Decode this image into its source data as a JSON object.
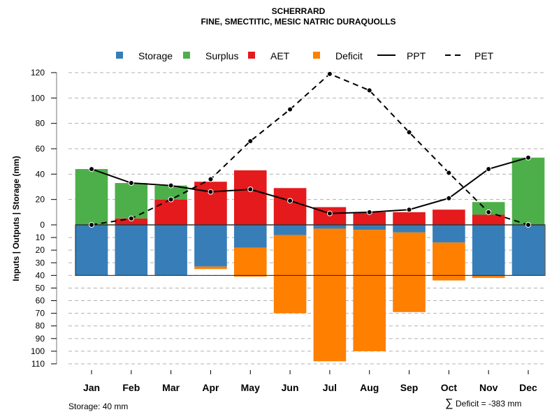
{
  "chart_data": {
    "type": "bar",
    "title": "SCHERRARD",
    "subtitle": "FINE, SMECTITIC, MESIC NATRIC DURAQUOLLS",
    "ylabel": "Inputs | Outputs | Storage    (mm)",
    "xlabel": "",
    "categories": [
      "Jan",
      "Feb",
      "Mar",
      "Apr",
      "May",
      "Jun",
      "Jul",
      "Aug",
      "Sep",
      "Oct",
      "Nov",
      "Dec"
    ],
    "upper_yticks": [
      0,
      20,
      40,
      60,
      80,
      100,
      120
    ],
    "lower_yticks": [
      10,
      20,
      30,
      40,
      50,
      60,
      70,
      80,
      90,
      100,
      110
    ],
    "ylim_upper": [
      0,
      120
    ],
    "ylim_lower": [
      0,
      110
    ],
    "grid": true,
    "legend_position": "top",
    "legend": [
      {
        "name": "Storage",
        "kind": "box",
        "color": "#377EB8"
      },
      {
        "name": "Surplus",
        "kind": "box",
        "color": "#4DAF4A"
      },
      {
        "name": "AET",
        "kind": "box",
        "color": "#E41A1C"
      },
      {
        "name": "Deficit",
        "kind": "box",
        "color": "#FF7F00"
      },
      {
        "name": "PPT",
        "kind": "solid-line",
        "color": "#000000"
      },
      {
        "name": "PET",
        "kind": "dashed-line",
        "color": "#000000"
      }
    ],
    "series": [
      {
        "name": "AET",
        "color": "#E41A1C",
        "values": [
          0,
          5,
          20,
          34,
          43,
          29,
          14,
          10,
          10,
          12,
          8,
          0
        ]
      },
      {
        "name": "Surplus",
        "color": "#4DAF4A",
        "values": [
          44,
          28,
          11,
          0,
          0,
          0,
          0,
          0,
          0,
          0,
          10,
          53
        ]
      },
      {
        "name": "Storage",
        "color": "#377EB8",
        "values": [
          40,
          40,
          40,
          33,
          18,
          8,
          3,
          4,
          6,
          14,
          40,
          40
        ]
      },
      {
        "name": "Deficit",
        "color": "#FF7F00",
        "values": [
          0,
          0,
          0,
          2,
          23,
          62,
          105,
          96,
          63,
          30,
          2,
          0
        ]
      },
      {
        "name": "PPT",
        "color": "#000000",
        "values": [
          44,
          33,
          31,
          26,
          28,
          19,
          9,
          10,
          12,
          21,
          44,
          53
        ]
      },
      {
        "name": "PET",
        "color": "#000000",
        "values": [
          0,
          5,
          20,
          36,
          66,
          91,
          119,
          106,
          73,
          41,
          10,
          0
        ]
      }
    ],
    "storage_capacity": 40,
    "annotations": {
      "storage": "Storage: 40 mm",
      "deficit_sum_symbol": "∑",
      "deficit_sum": "Deficit = -383 mm"
    }
  }
}
